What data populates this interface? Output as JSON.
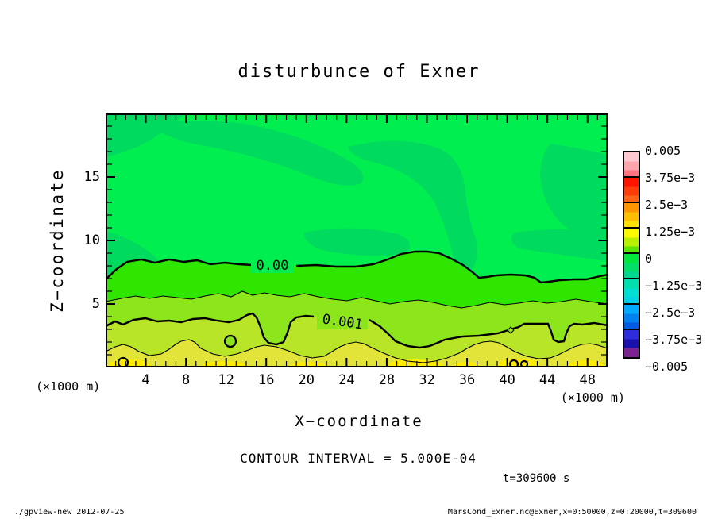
{
  "title": "disturbunce of Exner",
  "footer": {
    "left": "./gpview-new  2012-07-25",
    "right": "MarsCond_Exner.nc@Exner,x=0:50000,z=0:20000,t=309600"
  },
  "annotations": {
    "contour_interval": "CONTOUR INTERVAL = 5.000E-04",
    "time": "t=309600 s"
  },
  "chart_data": {
    "type": "heatmap",
    "subtype": "filled-contour",
    "title": "disturbunce of Exner",
    "xlabel": "X−coordinate",
    "ylabel": "Z−coordinate",
    "x_unit": "(×1000 m)",
    "y_unit": "(×1000 m)",
    "xlim": [
      0,
      50
    ],
    "ylim": [
      0,
      20
    ],
    "x_ticks": [
      4,
      8,
      12,
      16,
      20,
      24,
      28,
      32,
      36,
      40,
      44,
      48
    ],
    "y_ticks": [
      5,
      10,
      15
    ],
    "x_minor_step": 1,
    "y_minor_step": 1,
    "contour_interval_value": 0.0005,
    "contours": [
      {
        "level": 0.0,
        "label": "0.00",
        "thick": true,
        "approx_z_km": 8.2
      },
      {
        "level": 0.0005,
        "label": "",
        "thick": false,
        "approx_z_km": 5.4
      },
      {
        "level": 0.001,
        "label": "0.001",
        "thick": true,
        "approx_z_km": 3.7
      },
      {
        "level": 0.0015,
        "label": "",
        "thick": false,
        "approx_z_km": 1.3
      }
    ],
    "contour_label_0": "0.00",
    "contour_label_1": "0.001",
    "fill_colors": {
      "bg_upper": "#00ee4f",
      "bg_upper_patch": "#00da5e",
      "band_0_to_5e4": "#2ee600",
      "band_5e4_to_1e3": "#8de61b",
      "band_1e3_to_15e3": "#b9e529",
      "band_15e3_to_2e3": "#e2e43a",
      "hot_patch": "#ffec00"
    },
    "colorbar": {
      "labels": [
        "0.005",
        "3.75e−3",
        "2.5e−3",
        "1.25e−3",
        "0",
        "−1.25e−3",
        "−2.5e−3",
        "−3.75e−3",
        "−0.005"
      ],
      "boxes": [
        [
          "#ffc9d2",
          "#ffa3ac",
          "#ff7380"
        ],
        [
          "#ff1400",
          "#ff3c0a",
          "#ff6414"
        ],
        [
          "#ff9600",
          "#ffbe00",
          "#ffe100"
        ],
        [
          "#fbfb00",
          "#b9ef00",
          "#5ae600"
        ],
        [
          "#00e63c",
          "#00e066",
          "#00d78f"
        ],
        [
          "#00e0ae",
          "#00e0d2",
          "#00d2e6"
        ],
        [
          "#00aaff",
          "#0082f0",
          "#005ae6"
        ],
        [
          "#2d2ddb",
          "#1a10ad",
          "#7d2391"
        ]
      ]
    }
  }
}
